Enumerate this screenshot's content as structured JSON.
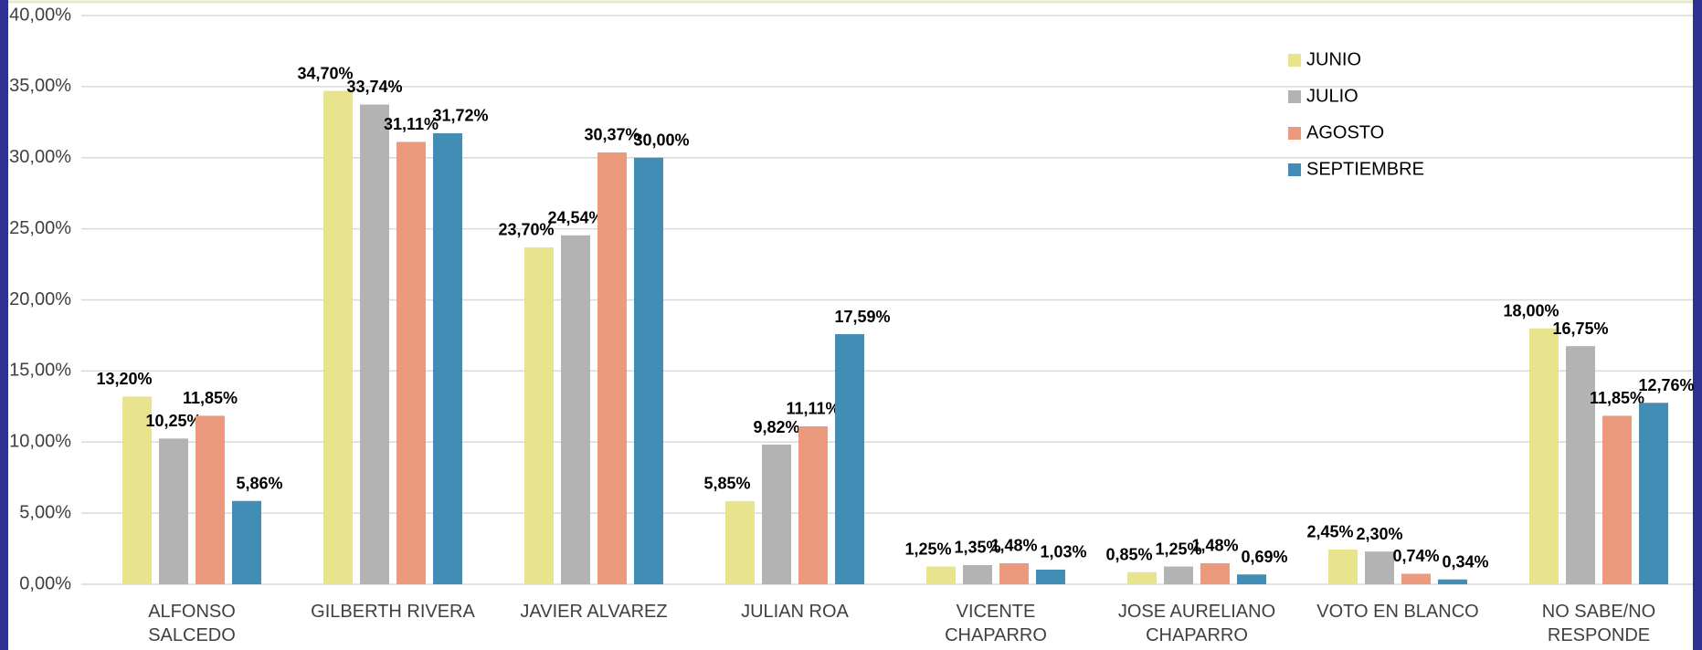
{
  "chart_data": {
    "type": "bar",
    "categories": [
      "ALFONSO SALCEDO",
      "GILBERTH RIVERA",
      "JAVIER ALVAREZ",
      "JULIAN ROA",
      "VICENTE CHAPARRO",
      "JOSE AURELIANO CHAPARRO",
      "VOTO EN BLANCO",
      "NO SABE/NO RESPONDE"
    ],
    "series": [
      {
        "name": "JUNIO",
        "color": "#e8e48e",
        "values": [
          13.2,
          34.7,
          23.7,
          5.85,
          1.25,
          0.85,
          2.45,
          18.0
        ],
        "value_labels": [
          "13,20%",
          "34,70%",
          "23,70%",
          "5,85%",
          "1,25%",
          "0,85%",
          "2,45%",
          "18,00%"
        ]
      },
      {
        "name": "JULIO",
        "color": "#b3b3b3",
        "values": [
          10.25,
          33.74,
          24.54,
          9.82,
          1.35,
          1.25,
          2.3,
          16.75
        ],
        "value_labels": [
          "10,25%",
          "33,74%",
          "24,54%",
          "9,82%",
          "1,35%",
          "1,25%",
          "2,30%",
          "16,75%"
        ]
      },
      {
        "name": "AGOSTO",
        "color": "#ec9a7e",
        "values": [
          11.85,
          31.11,
          30.37,
          11.11,
          1.48,
          1.48,
          0.74,
          11.85
        ],
        "value_labels": [
          "11,85%",
          "31,11%",
          "30,37%",
          "11,11%",
          "1,48%",
          "1,48%",
          "0,74%",
          "11,85%"
        ]
      },
      {
        "name": "SEPTIEMBRE",
        "color": "#428db5",
        "values": [
          5.86,
          31.72,
          30.0,
          17.59,
          1.03,
          0.69,
          0.34,
          12.76
        ],
        "value_labels": [
          "5,86%",
          "31,72%",
          "30,00%",
          "17,59%",
          "1,03%",
          "0,69%",
          "0,34%",
          "12,76%"
        ]
      }
    ],
    "ylim": [
      0,
      40
    ],
    "yticks": [
      {
        "value": 0,
        "label": "0,00%"
      },
      {
        "value": 5,
        "label": "5,00%"
      },
      {
        "value": 10,
        "label": "10,00%"
      },
      {
        "value": 15,
        "label": "15,00%"
      },
      {
        "value": 20,
        "label": "20,00%"
      },
      {
        "value": 25,
        "label": "25,00%"
      },
      {
        "value": 30,
        "label": "30,00%"
      },
      {
        "value": 35,
        "label": "35,00%"
      },
      {
        "value": 40,
        "label": "40,00%"
      }
    ],
    "grid": true,
    "legend": "top-right"
  }
}
